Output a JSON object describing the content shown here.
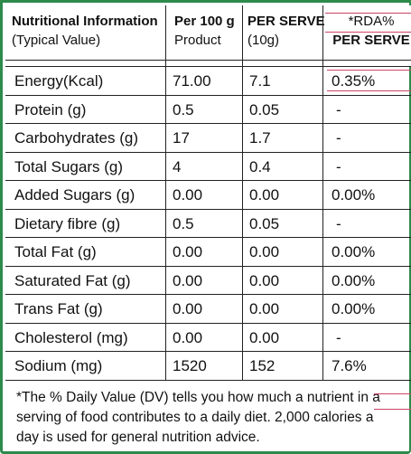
{
  "header": {
    "col1_title": "Nutritional Information",
    "col1_sub": "(Typical Value)",
    "col2_title": "Per 100 g",
    "col2_sub": "Product",
    "col3_title": "PER SERVE",
    "col3_sub": "(10g)",
    "col4_title": "*RDA%",
    "col4_sub": "PER SERVE"
  },
  "rows": [
    {
      "nutrient": "Energy(Kcal)",
      "per100": "71.00",
      "perServe": "7.1",
      "rda": "0.35%"
    },
    {
      "nutrient": "Protein (g)",
      "per100": "0.5",
      "perServe": "0.05",
      "rda": "-"
    },
    {
      "nutrient": "Carbohydrates (g)",
      "per100": "17",
      "perServe": "1.7",
      "rda": "-"
    },
    {
      "nutrient": "Total  Sugars (g)",
      "per100": "4",
      "perServe": "0.4",
      "rda": "-"
    },
    {
      "nutrient": "Added Sugars  (g)",
      "per100": "0.00",
      "perServe": "0.00",
      "rda": "0.00%"
    },
    {
      "nutrient": "Dietary fibre (g)",
      "per100": "0.5",
      "perServe": "0.05",
      "rda": "-"
    },
    {
      "nutrient": "Total Fat (g)",
      "per100": "0.00",
      "perServe": "0.00",
      "rda": "0.00%"
    },
    {
      "nutrient": "Saturated Fat (g)",
      "per100": "0.00",
      "perServe": "0.00",
      "rda": "0.00%"
    },
    {
      "nutrient": "Trans Fat (g)",
      "per100": "0.00",
      "perServe": "0.00",
      "rda": "0.00%"
    },
    {
      "nutrient": "Cholesterol (mg)",
      "per100": "0.00",
      "perServe": "0.00",
      "rda": "-"
    },
    {
      "nutrient": "Sodium (mg)",
      "per100": "1520",
      "perServe": "152",
      "rda": "7.6%"
    }
  ],
  "footnote": {
    "line1": "*The % Daily Value (DV) tells you how much a nutrient in a",
    "line2": "serving of food contributes to a daily diet. 2,000 calories a",
    "line3": "day is used for general nutrition advice."
  },
  "colors": {
    "border": "#2d8a4b",
    "rule": "#222222",
    "highlight": "#cc4466"
  }
}
